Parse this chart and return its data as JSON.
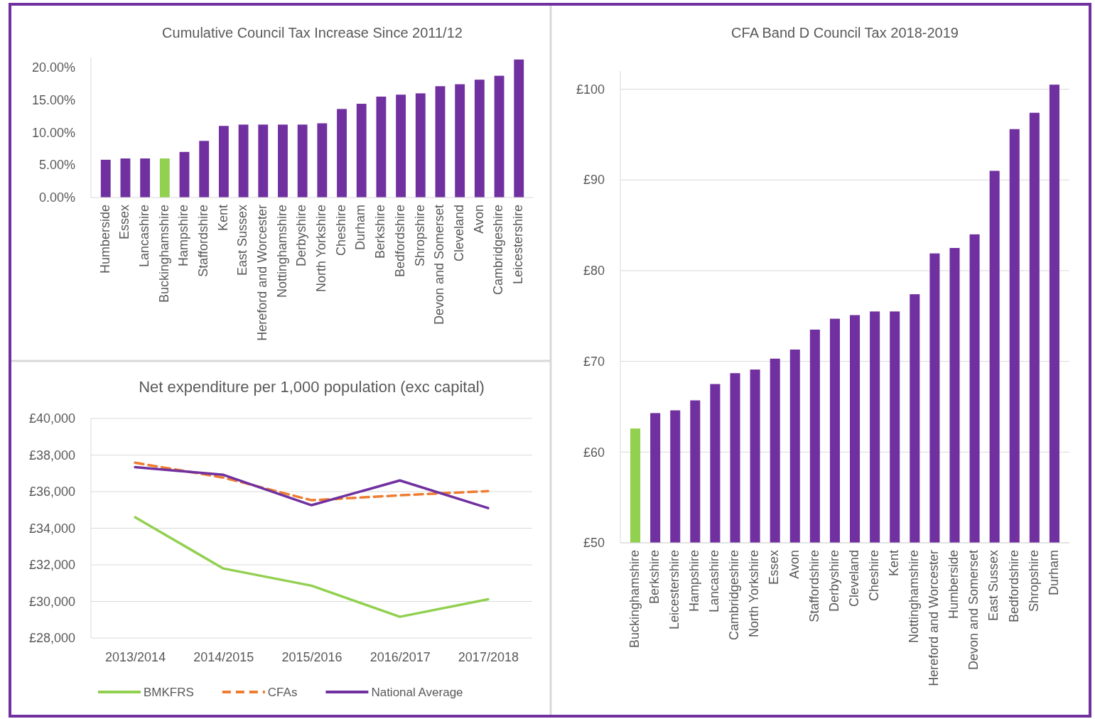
{
  "chart_data": [
    {
      "type": "bar",
      "title": "Cumulative Council Tax Increase Since 2011/12",
      "categories": [
        "Humberside",
        "Essex",
        "Lancashire",
        "Buckinghamshire",
        "Hampshire",
        "Staffordshire",
        "Kent",
        "East Sussex",
        "Hereford and Worcester",
        "Nottinghamshire",
        "Derbyshire",
        "North Yorkshire",
        "Cheshire",
        "Durham",
        "Berkshire",
        "Bedfordshire",
        "Shropshire",
        "Devon and Somerset",
        "Cleveland",
        "Avon",
        "Cambridgeshire",
        "Leicestershire"
      ],
      "values": [
        5.8,
        6.0,
        6.0,
        6.0,
        7.0,
        8.7,
        11.0,
        11.2,
        11.2,
        11.2,
        11.2,
        11.4,
        13.6,
        14.4,
        15.5,
        15.8,
        16.0,
        17.1,
        17.4,
        18.1,
        18.7,
        21.2
      ],
      "colors": [
        "#7030a0",
        "#7030a0",
        "#7030a0",
        "#92d050",
        "#7030a0",
        "#7030a0",
        "#7030a0",
        "#7030a0",
        "#7030a0",
        "#7030a0",
        "#7030a0",
        "#7030a0",
        "#7030a0",
        "#7030a0",
        "#7030a0",
        "#7030a0",
        "#7030a0",
        "#7030a0",
        "#7030a0",
        "#7030a0",
        "#7030a0",
        "#7030a0"
      ],
      "ylim": [
        0,
        21.5
      ],
      "yticks": [
        {
          "value": 0,
          "label": "0.00%"
        },
        {
          "value": 5,
          "label": "5.00%"
        },
        {
          "value": 10,
          "label": "10.00%"
        },
        {
          "value": 15,
          "label": "15.00%"
        },
        {
          "value": 20,
          "label": "20.00%"
        }
      ],
      "grid": false
    },
    {
      "type": "line",
      "title": "Net expenditure per 1,000 population (exc capital)",
      "categories": [
        "2013/2014",
        "2014/2015",
        "2015/2016",
        "2016/2017",
        "2017/2018"
      ],
      "series": [
        {
          "name": "BMKFRS",
          "color": "#92d050",
          "line_style": "solid",
          "values": [
            34600,
            31800,
            30860,
            29160,
            30120
          ]
        },
        {
          "name": "CFAs",
          "color": "#ed7d31",
          "line_style": "dashed",
          "values": [
            37580,
            36770,
            35530,
            35800,
            36030
          ]
        },
        {
          "name": "National Average",
          "color": "#7030a0",
          "line_style": "solid",
          "values": [
            37340,
            36920,
            35260,
            36610,
            35100
          ]
        }
      ],
      "ylim": [
        28000,
        40000
      ],
      "yticks": [
        {
          "value": 28000,
          "label": "£28,000"
        },
        {
          "value": 30000,
          "label": "£30,000"
        },
        {
          "value": 32000,
          "label": "£32,000"
        },
        {
          "value": 34000,
          "label": "£34,000"
        },
        {
          "value": 36000,
          "label": "£36,000"
        },
        {
          "value": 38000,
          "label": "£38,000"
        },
        {
          "value": 40000,
          "label": "£40,000"
        }
      ],
      "grid": "y",
      "legend": "bottom",
      "marker": "none"
    },
    {
      "type": "bar",
      "title": "CFA Band D Council Tax 2018-2019",
      "categories": [
        "Buckinghamshire",
        "Berkshire",
        "Leicestershire",
        "Hampshire",
        "Lancashire",
        "Cambridgeshire",
        "North Yorkshire",
        "Essex",
        "Avon",
        "Staffordshire",
        "Derbyshire",
        "Cleveland",
        "Cheshire",
        "Kent",
        "Nottinghamshire",
        "Hereford and Worcester",
        "Humberside",
        "Devon and Somerset",
        "East Sussex",
        "Bedfordshire",
        "Shropshire",
        "Durham"
      ],
      "values": [
        62.6,
        64.3,
        64.6,
        65.7,
        67.5,
        68.7,
        69.1,
        70.3,
        71.3,
        73.5,
        74.7,
        75.1,
        75.5,
        75.5,
        77.4,
        81.9,
        82.5,
        84.0,
        91.0,
        95.6,
        97.4,
        100.5
      ],
      "colors": [
        "#92d050",
        "#7030a0",
        "#7030a0",
        "#7030a0",
        "#7030a0",
        "#7030a0",
        "#7030a0",
        "#7030a0",
        "#7030a0",
        "#7030a0",
        "#7030a0",
        "#7030a0",
        "#7030a0",
        "#7030a0",
        "#7030a0",
        "#7030a0",
        "#7030a0",
        "#7030a0",
        "#7030a0",
        "#7030a0",
        "#7030a0",
        "#7030a0"
      ],
      "ylim": [
        50,
        102
      ],
      "yticks": [
        {
          "value": 50,
          "label": "£50"
        },
        {
          "value": 60,
          "label": "£60"
        },
        {
          "value": 70,
          "label": "£70"
        },
        {
          "value": 80,
          "label": "£80"
        },
        {
          "value": 90,
          "label": "£90"
        },
        {
          "value": 100,
          "label": "£100"
        }
      ],
      "grid": "y"
    }
  ]
}
